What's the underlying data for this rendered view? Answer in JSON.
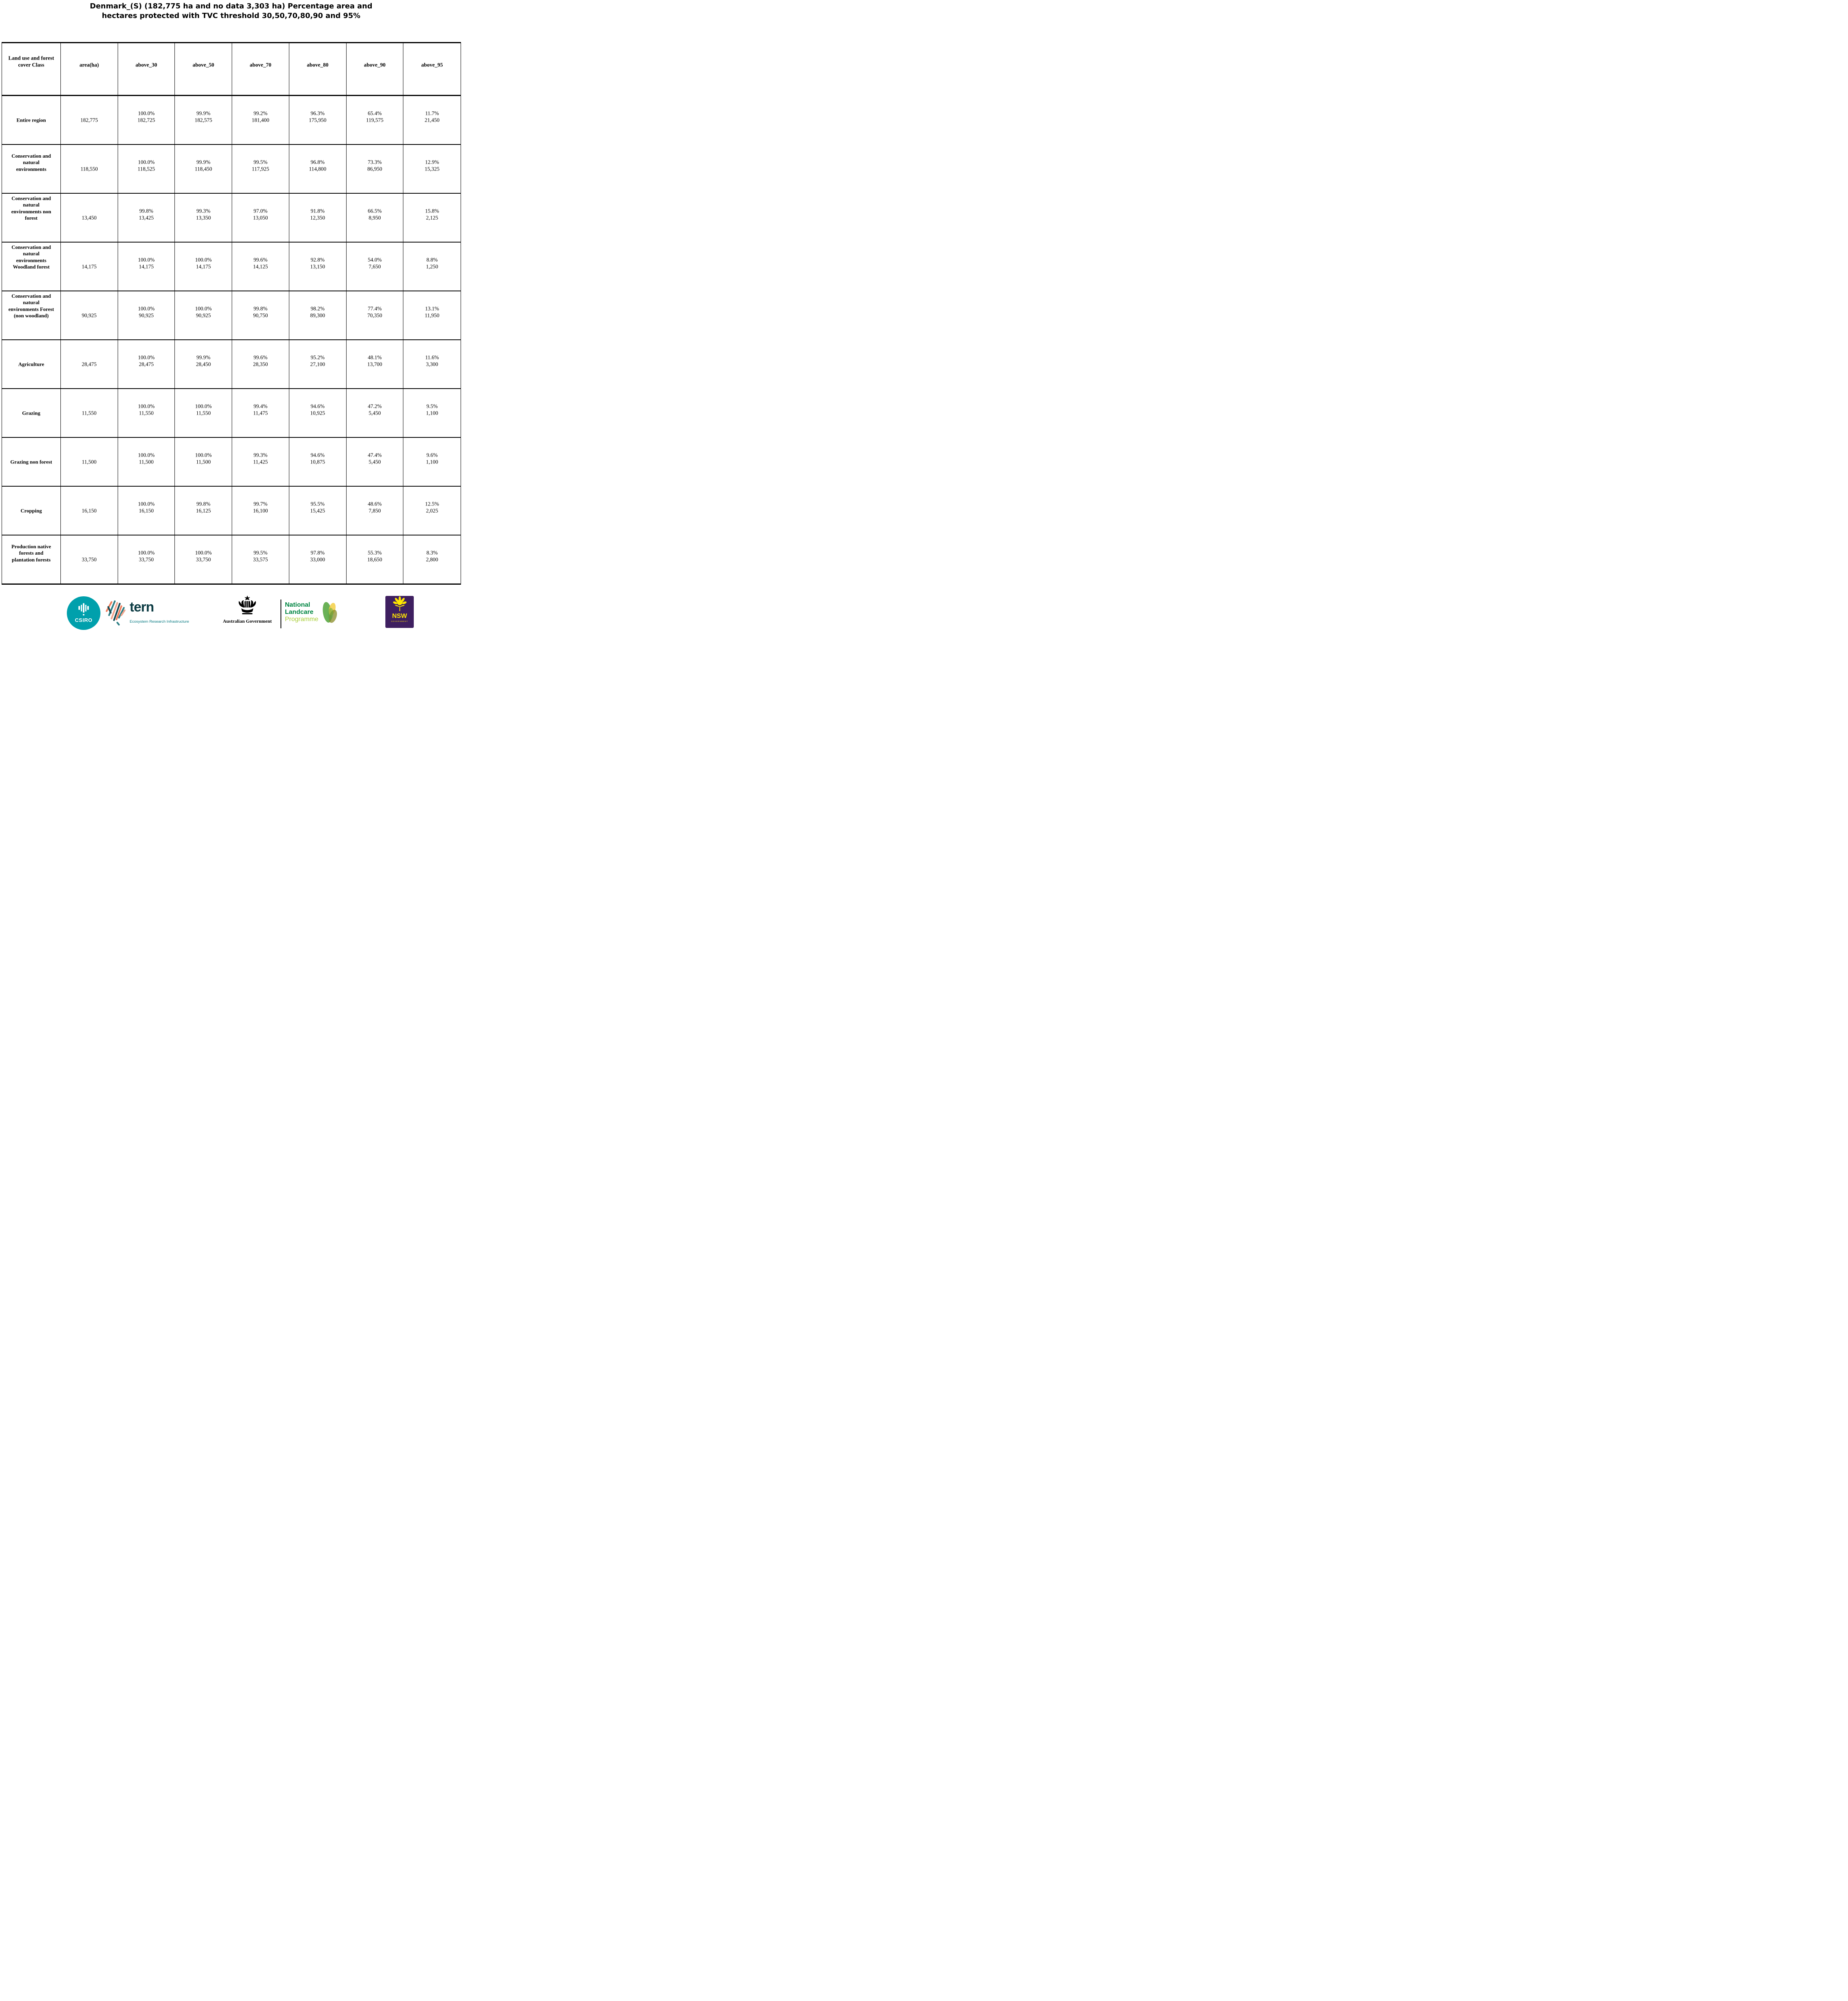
{
  "title": {
    "line1": "Denmark_(S) (182,775 ha and no data 3,303 ha) Percentage area and",
    "line2": "hectares protected with TVC threshold 30,50,70,80,90 and 95%"
  },
  "table": {
    "columns": [
      "Land use and forest cover Class",
      "area(ha)",
      "above_30",
      "above_50",
      "above_70",
      "above_80",
      "above_90",
      "above_95"
    ],
    "rows": [
      {
        "label": "Entire region",
        "area": "182,775",
        "cells": [
          [
            "100.0%",
            "182,725"
          ],
          [
            "99.9%",
            "182,575"
          ],
          [
            "99.2%",
            "181,400"
          ],
          [
            "96.3%",
            "175,950"
          ],
          [
            "65.4%",
            "119,575"
          ],
          [
            "11.7%",
            "21,450"
          ]
        ]
      },
      {
        "label": "Conservation and natural environments",
        "area": "118,550",
        "cells": [
          [
            "100.0%",
            "118,525"
          ],
          [
            "99.9%",
            "118,450"
          ],
          [
            "99.5%",
            "117,925"
          ],
          [
            "96.8%",
            "114,800"
          ],
          [
            "73.3%",
            "86,950"
          ],
          [
            "12.9%",
            "15,325"
          ]
        ]
      },
      {
        "label": "Conservation and natural environments non forest",
        "area": "13,450",
        "cells": [
          [
            "99.8%",
            "13,425"
          ],
          [
            "99.3%",
            "13,350"
          ],
          [
            "97.0%",
            "13,050"
          ],
          [
            "91.8%",
            "12,350"
          ],
          [
            "66.5%",
            "8,950"
          ],
          [
            "15.8%",
            "2,125"
          ]
        ]
      },
      {
        "label": "Conservation and natural environments Woodland forest",
        "area": "14,175",
        "cells": [
          [
            "100.0%",
            "14,175"
          ],
          [
            "100.0%",
            "14,175"
          ],
          [
            "99.6%",
            "14,125"
          ],
          [
            "92.8%",
            "13,150"
          ],
          [
            "54.0%",
            "7,650"
          ],
          [
            "8.8%",
            "1,250"
          ]
        ]
      },
      {
        "label": "Conservation and natural environments Forest (non woodland)",
        "area": "90,925",
        "cells": [
          [
            "100.0%",
            "90,925"
          ],
          [
            "100.0%",
            "90,925"
          ],
          [
            "99.8%",
            "90,750"
          ],
          [
            "98.2%",
            "89,300"
          ],
          [
            "77.4%",
            "70,350"
          ],
          [
            "13.1%",
            "11,950"
          ]
        ]
      },
      {
        "label": "Agriculture",
        "area": "28,475",
        "cells": [
          [
            "100.0%",
            "28,475"
          ],
          [
            "99.9%",
            "28,450"
          ],
          [
            "99.6%",
            "28,350"
          ],
          [
            "95.2%",
            "27,100"
          ],
          [
            "48.1%",
            "13,700"
          ],
          [
            "11.6%",
            "3,300"
          ]
        ]
      },
      {
        "label": "Grazing",
        "area": "11,550",
        "cells": [
          [
            "100.0%",
            "11,550"
          ],
          [
            "100.0%",
            "11,550"
          ],
          [
            "99.4%",
            "11,475"
          ],
          [
            "94.6%",
            "10,925"
          ],
          [
            "47.2%",
            "5,450"
          ],
          [
            "9.5%",
            "1,100"
          ]
        ]
      },
      {
        "label": "Grazing non forest",
        "area": "11,500",
        "cells": [
          [
            "100.0%",
            "11,500"
          ],
          [
            "100.0%",
            "11,500"
          ],
          [
            "99.3%",
            "11,425"
          ],
          [
            "94.6%",
            "10,875"
          ],
          [
            "47.4%",
            "5,450"
          ],
          [
            "9.6%",
            "1,100"
          ]
        ]
      },
      {
        "label": "Cropping",
        "area": "16,150",
        "cells": [
          [
            "100.0%",
            "16,150"
          ],
          [
            "99.8%",
            "16,125"
          ],
          [
            "99.7%",
            "16,100"
          ],
          [
            "95.5%",
            "15,425"
          ],
          [
            "48.6%",
            "7,850"
          ],
          [
            "12.5%",
            "2,025"
          ]
        ]
      },
      {
        "label": "Production native forests and plantation forests",
        "area": "33,750",
        "cells": [
          [
            "100.0%",
            "33,750"
          ],
          [
            "100.0%",
            "33,750"
          ],
          [
            "99.5%",
            "33,575"
          ],
          [
            "97.8%",
            "33,000"
          ],
          [
            "55.3%",
            "18,650"
          ],
          [
            "8.3%",
            "2,800"
          ]
        ]
      }
    ]
  },
  "footer": {
    "csiro_label": "CSIRO",
    "tern_label": "tern",
    "tern_sub": "Ecosystem Research Infrastructure",
    "gov_label": "Australian Government",
    "landcare_line1": "National",
    "landcare_line2": "Landcare",
    "landcare_line3": "Programme",
    "nsw_label": "NSW",
    "nsw_sub": "GOVERNMENT"
  },
  "colors": {
    "csiro_teal": "#00a0ac",
    "tern_dark": "#0c3c44",
    "tern_teal": "#0b7c84",
    "landcare_green": "#008542",
    "landcare_light_green": "#a8ce38",
    "nsw_purple": "#3e1f60",
    "nsw_yellow": "#ffe600",
    "map_orange": "#ef7b58",
    "map_salmon": "#f2a48c",
    "map_teal": "#2e7f85",
    "map_dark": "#174a52",
    "leaf_green": "#5aa845",
    "leaf_yellow": "#f3cf45",
    "leaf_olive": "#8a8c28",
    "border": "#000000"
  }
}
